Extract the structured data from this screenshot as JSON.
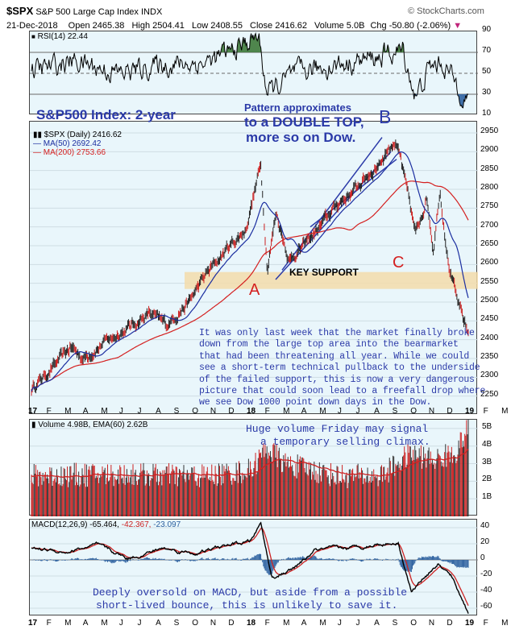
{
  "header": {
    "ticker": "$SPX",
    "name": "S&P 500 Large Cap Index",
    "exchange": "INDX",
    "source": "© StockCharts.com",
    "date": "21-Dec-2018",
    "open": "Open 2465.38",
    "high": "High 2504.41",
    "low": "Low 2408.55",
    "close": "Close 2416.62",
    "volume": "Volume 5.0B",
    "chg": "Chg -50.80 (-2.06%)",
    "chg_arrow": "▼"
  },
  "colors": {
    "pane_bg": "#e9f6fb",
    "price": "#000000",
    "ma50": "#1b2ea0",
    "ma200": "#d42020",
    "rsi_fill": "#3e7a3a",
    "support_band": "#f3dcaa",
    "annotation": "#2b3aa8",
    "label_red": "#d42020",
    "volume_bar": "#cc2222",
    "volume_ema": "#cc2222",
    "macd": "#000000",
    "macd_signal": "#cc2222",
    "histogram": "#2e62a0"
  },
  "rsi": {
    "legend": "RSI(14) 22.44",
    "ticks": [
      "70",
      "50",
      "30"
    ],
    "top_val": "90",
    "bottom_val": "10"
  },
  "price": {
    "legend_main": "$SPX (Daily) 2416.62",
    "legend_ma50": "MA(50) 2692.42",
    "legend_ma200": "MA(200) 2753.66",
    "ticks": [
      "2950",
      "2900",
      "2850",
      "2800",
      "2750",
      "2700",
      "2650",
      "2600",
      "2550",
      "2500",
      "2450",
      "2400",
      "2350",
      "2300",
      "2250"
    ],
    "title_annotation": "S&P500 Index: 2-year",
    "pattern_line1": "Pattern approximates",
    "pattern_line2": "to a DOUBLE TOP,",
    "pattern_line3": "more so on Dow.",
    "label_a": "A",
    "label_b": "B",
    "label_c": "C",
    "key_support": "KEY SUPPORT",
    "commentary": [
      "It was only last week that the market finally broke",
      "down from the large top area into the bearmarket",
      "that had been threatening  all year. While we could",
      "see a short-term technical pullback to the underside",
      "of the failed support, this is now a very dangerous",
      "picture that could soon lead to a freefall drop where",
      "we see Dow 1000 point down days in the Dow."
    ]
  },
  "months": [
    "17",
    "F",
    "M",
    "A",
    "M",
    "J",
    "J",
    "A",
    "S",
    "O",
    "N",
    "D",
    "18",
    "F",
    "M",
    "A",
    "M",
    "J",
    "J",
    "A",
    "S",
    "O",
    "N",
    "D",
    "19",
    "F",
    "M"
  ],
  "volume": {
    "legend": "Volume 4.98B, EMA(60) 2.62B",
    "ticks": [
      "5B",
      "4B",
      "3B",
      "2B",
      "1B"
    ],
    "note_line1": "Huge volume Friday may signal",
    "note_line2": "a temporary selling climax."
  },
  "macd": {
    "legend_label": "MACD(12,26,9)",
    "legend_macd": "-65.464,",
    "legend_signal": "-42.367,",
    "legend_hist": "-23.097",
    "ticks": [
      "40",
      "20",
      "0",
      "-20",
      "-40",
      "-60"
    ],
    "note_line1": "Deeply oversold on MACD, but aside from a possible",
    "note_line2": "short-lived bounce, this is unlikely to save it."
  },
  "chart_data": [
    {
      "type": "line",
      "title": "RSI(14)",
      "x": [
        "2017-01",
        "2017-03",
        "2017-05",
        "2017-07",
        "2017-09",
        "2017-11",
        "2018-01",
        "2018-02",
        "2018-04",
        "2018-06",
        "2018-08",
        "2018-10",
        "2018-11",
        "2018-12-21"
      ],
      "values": [
        55,
        60,
        48,
        58,
        55,
        72,
        86,
        30,
        50,
        58,
        66,
        24,
        55,
        22.44
      ],
      "ylim": [
        10,
        90
      ]
    },
    {
      "type": "line",
      "title": "$SPX (Daily)",
      "x": [
        "2017-01",
        "2017-02",
        "2017-03",
        "2017-04",
        "2017-05",
        "2017-06",
        "2017-07",
        "2017-08",
        "2017-09",
        "2017-10",
        "2017-11",
        "2017-12",
        "2018-01",
        "2018-02",
        "2018-03",
        "2018-04",
        "2018-05",
        "2018-06",
        "2018-07",
        "2018-08",
        "2018-09",
        "2018-10",
        "2018-11",
        "2018-12-21"
      ],
      "series": [
        {
          "name": "$SPX (Daily)",
          "values": [
            2275,
            2350,
            2370,
            2360,
            2395,
            2430,
            2470,
            2450,
            2500,
            2575,
            2640,
            2680,
            2860,
            2620,
            2680,
            2640,
            2720,
            2760,
            2810,
            2880,
            2930,
            2700,
            2740,
            2416.62
          ]
        },
        {
          "name": "MA(50)",
          "values": [
            2240,
            2280,
            2340,
            2350,
            2370,
            2400,
            2430,
            2450,
            2470,
            2520,
            2580,
            2630,
            2720,
            2740,
            2720,
            2680,
            2690,
            2730,
            2770,
            2830,
            2880,
            2860,
            2780,
            2692.42
          ]
        },
        {
          "name": "MA(200)",
          "values": [
            2210,
            2230,
            2250,
            2270,
            2300,
            2330,
            2360,
            2380,
            2400,
            2430,
            2460,
            2490,
            2540,
            2580,
            2610,
            2630,
            2650,
            2680,
            2700,
            2720,
            2740,
            2760,
            2765,
            2753.66
          ]
        }
      ],
      "ylim": [
        2200,
        2980
      ]
    },
    {
      "type": "bar",
      "title": "Volume",
      "x": [
        "2017-01",
        "2017-04",
        "2017-07",
        "2017-10",
        "2018-01",
        "2018-02",
        "2018-04",
        "2018-07",
        "2018-10",
        "2018-12-21"
      ],
      "values": [
        2.3,
        2.4,
        2.2,
        2.4,
        2.9,
        3.8,
        2.9,
        2.4,
        3.5,
        4.98
      ],
      "ylim": [
        0,
        5.5
      ]
    },
    {
      "type": "line",
      "title": "MACD(12,26,9)",
      "x": [
        "2017-01",
        "2017-03",
        "2017-05",
        "2017-07",
        "2017-09",
        "2017-11",
        "2018-01",
        "2018-02",
        "2018-04",
        "2018-06",
        "2018-08",
        "2018-10",
        "2018-11",
        "2018-12-21"
      ],
      "series": [
        {
          "name": "MACD",
          "values": [
            10,
            15,
            5,
            12,
            8,
            18,
            45,
            -20,
            -5,
            15,
            20,
            -45,
            -15,
            -65.464
          ]
        },
        {
          "name": "Signal",
          "values": [
            8,
            12,
            7,
            10,
            9,
            15,
            35,
            0,
            -10,
            10,
            18,
            -30,
            -25,
            -42.367
          ]
        },
        {
          "name": "Histogram",
          "values": [
            2,
            3,
            -2,
            2,
            -1,
            3,
            10,
            -20,
            5,
            5,
            2,
            -15,
            10,
            -23.097
          ]
        }
      ],
      "ylim": [
        -70,
        50
      ]
    }
  ]
}
